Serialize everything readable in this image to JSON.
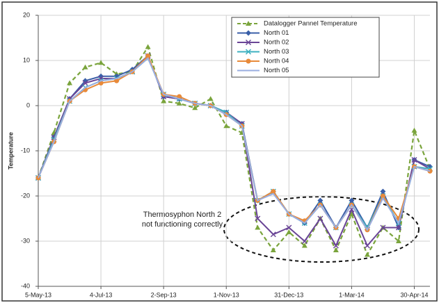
{
  "chart_data": {
    "type": "line",
    "y_label": "Temperature",
    "annotation": [
      "Thermosyphon North 2",
      "not functioning correctly"
    ],
    "x": [
      "5-May-13",
      "20-May-13",
      "4-Jun-13",
      "19-Jun-13",
      "4-Jul-13",
      "19-Jul-13",
      "3-Aug-13",
      "18-Aug-13",
      "2-Sep-13",
      "17-Sep-13",
      "2-Oct-13",
      "17-Oct-13",
      "1-Nov-13",
      "16-Nov-13",
      "1-Dec-13",
      "16-Dec-13",
      "31-Dec-13",
      "15-Jan-14",
      "30-Jan-14",
      "14-Feb-14",
      "1-Mar-14",
      "16-Mar-14",
      "31-Mar-14",
      "15-Apr-14",
      "30-Apr-14",
      "15-May-14"
    ],
    "xlim": [
      "5-May-13",
      "15-May-14"
    ],
    "xticks": [
      "5-May-13",
      "4-Jul-13",
      "2-Sep-13",
      "1-Nov-13",
      "31-Dec-13",
      "1-Mar-14",
      "30-Apr-14"
    ],
    "ylim": [
      -40,
      20
    ],
    "yticks": [
      -40,
      -30,
      -20,
      -10,
      0,
      10,
      20
    ],
    "grid": true,
    "legend": "upper right",
    "series": [
      {
        "name": "Datalogger Pannel Temperature",
        "color": "#7aa43c",
        "marker": "triangle",
        "linestyle": "dashed",
        "values": [
          -16,
          -6,
          5,
          8.5,
          9.5,
          7,
          7.5,
          13,
          1,
          0.5,
          -0.5,
          1.5,
          -4.5,
          -6,
          -27,
          -32,
          -28,
          -31,
          -25,
          -32,
          -24,
          -33,
          -27,
          -30,
          -5.5,
          -14
        ]
      },
      {
        "name": "North 01",
        "color": "#3a5fa8",
        "marker": "diamond",
        "linestyle": "solid",
        "values": [
          -16,
          -7,
          1.5,
          5.5,
          6.5,
          6.5,
          8,
          11,
          2,
          1.5,
          0.5,
          0,
          -1.5,
          -4,
          -21,
          -19,
          -24,
          -26,
          -21,
          -27,
          -21,
          -27,
          -19,
          -27,
          -12,
          -13.5
        ]
      },
      {
        "name": "North 02",
        "color": "#6a4596",
        "marker": "x",
        "linestyle": "solid",
        "values": [
          -16,
          -7,
          1.5,
          5,
          6,
          6,
          7.5,
          11,
          2,
          1.5,
          0.5,
          0,
          -1.5,
          -4,
          -25,
          -28.5,
          -27,
          -30,
          -25,
          -31,
          -23,
          -31,
          -27,
          -27,
          -12,
          -14
        ]
      },
      {
        "name": "North 03",
        "color": "#3cb0c0",
        "marker": "x",
        "linestyle": "solid",
        "values": [
          -16,
          -7.5,
          1,
          4,
          5.5,
          6,
          7.5,
          10.5,
          2.5,
          1.5,
          0.5,
          0,
          -1.5,
          -4.5,
          -21,
          -19,
          -24,
          -26,
          -22,
          -27,
          -22,
          -27,
          -20,
          -26,
          -13.5,
          -14
        ]
      },
      {
        "name": "North 04",
        "color": "#e88a3a",
        "marker": "circle",
        "linestyle": "solid",
        "values": [
          -16,
          -8,
          1,
          3.5,
          5,
          5.5,
          7.5,
          11,
          2.5,
          2,
          0.5,
          0,
          -2,
          -4.5,
          -21,
          -19,
          -24,
          -25.5,
          -22,
          -27,
          -22,
          -27.5,
          -20,
          -25,
          -13.5,
          -14.5
        ]
      },
      {
        "name": "North 05",
        "color": "#9aaee0",
        "marker": "none",
        "linestyle": "solid",
        "values": [
          -16,
          -8,
          1,
          4,
          5.5,
          6,
          7.5,
          10.5,
          2.5,
          1.5,
          0.5,
          0,
          -2,
          -4.5,
          -21,
          -19.5,
          -24,
          -26,
          -22,
          -27,
          -22,
          -27.5,
          -20.5,
          -26,
          -13.5,
          -14.5
        ]
      }
    ]
  }
}
